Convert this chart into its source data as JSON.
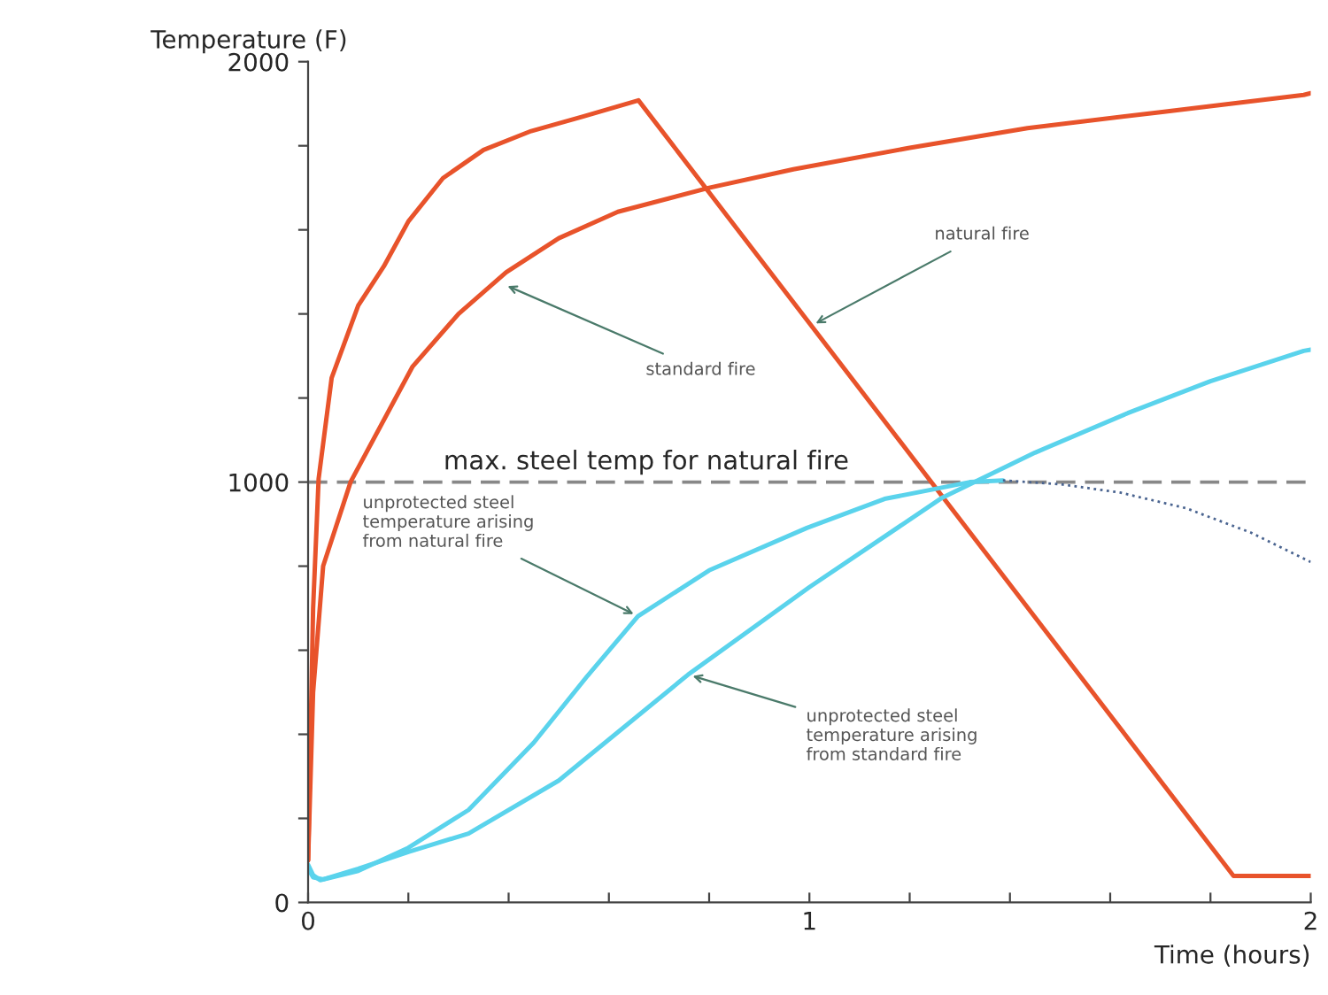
{
  "chart_data": {
    "type": "line",
    "xlabel": "Time (hours)",
    "ylabel": "Temperature (F)",
    "xlim": [
      0,
      2
    ],
    "ylim": [
      0,
      2000
    ],
    "xticks": [
      0,
      {
        "value": 0.2,
        "label": null
      },
      {
        "value": 0.4,
        "label": null
      },
      {
        "value": 0.6,
        "label": null
      },
      {
        "value": 0.8,
        "label": null
      },
      1,
      {
        "value": 1.2,
        "label": null
      },
      {
        "value": 1.4,
        "label": null
      },
      {
        "value": 1.6,
        "label": null
      },
      {
        "value": 1.8,
        "label": null
      },
      2
    ],
    "yticks": [
      0,
      {
        "value": 200,
        "label": null
      },
      {
        "value": 400,
        "label": null
      },
      {
        "value": 600,
        "label": null
      },
      {
        "value": 800,
        "label": null
      },
      1000,
      {
        "value": 1200,
        "label": null
      },
      {
        "value": 1400,
        "label": null
      },
      {
        "value": 1600,
        "label": null
      },
      {
        "value": 1800,
        "label": null
      },
      2000
    ],
    "grid": false,
    "legend": false,
    "marker": "none",
    "series": [
      {
        "color": "#e8532b",
        "x": [
          0,
          0.01,
          0.021,
          0.047,
          0.1,
          0.151,
          0.2,
          0.269,
          0.35,
          0.445,
          0.55,
          0.659,
          1.846,
          2
        ],
        "values": [
          100,
          700,
          1008,
          1248,
          1420,
          1513,
          1620,
          1723,
          1790,
          1835,
          1870,
          1908,
          63,
          63
        ]
      },
      {
        "color": "#e8532b",
        "x": [
          0,
          0.01,
          0.03,
          0.085,
          0.208,
          0.3,
          0.395,
          0.5,
          0.618,
          0.8,
          0.968,
          1.2,
          1.435,
          1.7,
          1.986,
          2
        ],
        "values": [
          100,
          500,
          800,
          1001,
          1274,
          1400,
          1499,
          1580,
          1643,
          1700,
          1744,
          1795,
          1842,
          1880,
          1921,
          1925
        ]
      },
      {
        "color": "#5ad3ec",
        "x": [
          0,
          0.01,
          0.024,
          0.1,
          0.2,
          0.32,
          0.45,
          0.558,
          0.658,
          0.8,
          0.995,
          1.15,
          1.32,
          1.386
        ],
        "values": [
          90,
          65,
          53,
          75,
          130,
          220,
          380,
          540,
          681,
          790,
          891,
          960,
          1000,
          1004
        ]
      },
      {
        "color": "#4a6490",
        "line_style": "dotted",
        "x": [
          1.386,
          1.5,
          1.62,
          1.751,
          1.88,
          2
        ],
        "values": [
          1004,
          995,
          975,
          938,
          880,
          810
        ]
      },
      {
        "color": "#5ad3ec",
        "x": [
          0,
          0.01,
          0.03,
          0.1,
          0.2,
          0.32,
          0.5,
          0.758,
          1.0,
          1.265,
          1.45,
          1.635,
          1.8,
          1.986,
          2
        ],
        "values": [
          80,
          60,
          55,
          80,
          120,
          164,
          290,
          542,
          750,
          963,
          1070,
          1164,
          1240,
          1312,
          1315
        ]
      }
    ],
    "ref_lines": [
      {
        "axis": "y",
        "value": 1000,
        "label": "max. steel temp for natural fire",
        "color": "#888888",
        "line_style": "dashed"
      }
    ],
    "annotations": [
      {
        "text": "standard fire",
        "x": 0.389,
        "y": 1471
      },
      {
        "text": "natural fire",
        "x": 1.004,
        "y": 1372
      },
      {
        "text": "unprotected steel\ntemperature arising\nfrom natural fire",
        "x": 0.658,
        "y": 681
      },
      {
        "text": "unprotected steel\ntemperature arising\nfrom standard fire",
        "x": 0.758,
        "y": 542
      }
    ]
  }
}
